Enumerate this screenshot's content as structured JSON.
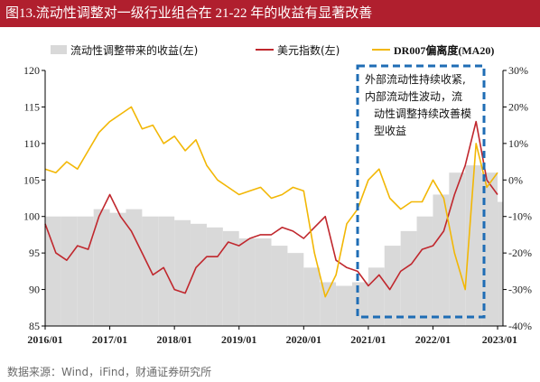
{
  "title": "图13.流动性调整对一级行业组合在 21-22 年的收益有显著改善",
  "source": "数据来源：Wind，iFind，财通证券研究所",
  "colors": {
    "title_bg": "#b01f2e",
    "area": "#d9d9d9",
    "usd": "#c0272d",
    "dr007": "#f2b705",
    "annotation": "#1f6db5"
  },
  "chart_data": {
    "type": "line",
    "legend_position": "top",
    "x_ticks": [
      "2016/01",
      "2017/01",
      "2018/01",
      "2019/01",
      "2020/01",
      "2021/01",
      "2022/01",
      "2023/01"
    ],
    "y_left": {
      "range": [
        85,
        120
      ],
      "ticks": [
        "85",
        "90",
        "95",
        "100",
        "105",
        "110",
        "115",
        "120"
      ]
    },
    "y_right": {
      "range": [
        -40,
        30
      ],
      "ticks": [
        "-40%",
        "-30%",
        "-20%",
        "-10%",
        "0%",
        "10%",
        "20%",
        "30%"
      ]
    },
    "annotation": [
      "外部流动性持续收紧,",
      "内部流动性波动，流",
      "动性调整持续改善模",
      "型收益"
    ],
    "series": [
      {
        "name": "流动性调整带来的收益(左)",
        "kind": "area",
        "axis": "left",
        "x": [
          "2016/01",
          "2016/04",
          "2016/07",
          "2016/10",
          "2017/01",
          "2017/04",
          "2017/07",
          "2017/10",
          "2018/01",
          "2018/04",
          "2018/07",
          "2018/10",
          "2019/01",
          "2019/04",
          "2019/07",
          "2019/10",
          "2020/01",
          "2020/04",
          "2020/07",
          "2020/10",
          "2021/01",
          "2021/04",
          "2021/07",
          "2021/10",
          "2022/01",
          "2022/04",
          "2022/07",
          "2022/10",
          "2023/01"
        ],
        "values": [
          100,
          100,
          100,
          101,
          100.5,
          101,
          100,
          100,
          99.5,
          99,
          98.5,
          98,
          97,
          97,
          96,
          95,
          93,
          91,
          90.5,
          91,
          93,
          96,
          98,
          100,
          103,
          106,
          107,
          106,
          102
        ]
      },
      {
        "name": "美元指数(左)",
        "kind": "line",
        "axis": "left",
        "x": [
          "2016/01",
          "2016/03",
          "2016/05",
          "2016/07",
          "2016/09",
          "2016/11",
          "2017/01",
          "2017/03",
          "2017/05",
          "2017/07",
          "2017/09",
          "2017/11",
          "2018/01",
          "2018/03",
          "2018/05",
          "2018/07",
          "2018/09",
          "2018/11",
          "2019/01",
          "2019/03",
          "2019/05",
          "2019/07",
          "2019/09",
          "2019/11",
          "2020/01",
          "2020/03",
          "2020/05",
          "2020/07",
          "2020/09",
          "2020/11",
          "2021/01",
          "2021/03",
          "2021/05",
          "2021/07",
          "2021/09",
          "2021/11",
          "2022/01",
          "2022/03",
          "2022/05",
          "2022/07",
          "2022/09",
          "2022/11",
          "2023/01"
        ],
        "values": [
          99,
          95,
          94,
          96,
          95.5,
          100,
          103,
          100,
          98,
          95,
          92,
          93,
          90,
          89.5,
          93,
          94.5,
          94.5,
          96.5,
          96,
          97,
          97.5,
          97.5,
          98.5,
          98,
          97,
          98.5,
          100,
          94,
          93,
          92.5,
          90.5,
          92,
          90,
          92.5,
          93.5,
          95.5,
          96,
          98,
          103,
          107,
          113,
          105,
          103
        ]
      },
      {
        "name": "DR007偏离度(MA20)",
        "kind": "line",
        "axis": "right",
        "x": [
          "2016/01",
          "2016/03",
          "2016/05",
          "2016/07",
          "2016/09",
          "2016/11",
          "2017/01",
          "2017/03",
          "2017/05",
          "2017/07",
          "2017/09",
          "2017/11",
          "2018/01",
          "2018/03",
          "2018/05",
          "2018/07",
          "2018/09",
          "2018/11",
          "2019/01",
          "2019/03",
          "2019/05",
          "2019/07",
          "2019/09",
          "2019/11",
          "2020/01",
          "2020/03",
          "2020/05",
          "2020/07",
          "2020/09",
          "2020/11",
          "2021/01",
          "2021/03",
          "2021/05",
          "2021/07",
          "2021/09",
          "2021/11",
          "2022/01",
          "2022/03",
          "2022/05",
          "2022/07",
          "2022/09",
          "2022/11",
          "2023/01"
        ],
        "values": [
          3,
          2,
          5,
          3,
          8,
          13,
          16,
          18,
          20,
          14,
          15,
          10,
          12,
          8,
          11,
          4,
          0,
          -2,
          -4,
          -3,
          -2,
          -5,
          -4,
          -2,
          -3,
          -20,
          -32,
          -26,
          -12,
          -8,
          0,
          3,
          -5,
          -8,
          -6,
          -6,
          0,
          -5,
          -20,
          -30,
          10,
          -2,
          2
        ]
      }
    ]
  }
}
